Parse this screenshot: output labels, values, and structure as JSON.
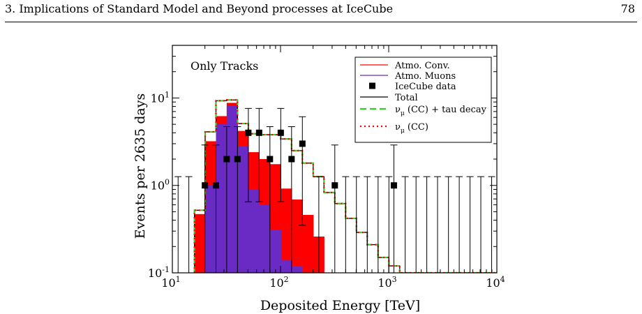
{
  "header": {
    "running_title": "3. Implications of Standard Model and Beyond processes at IceCube",
    "page_number": "78"
  },
  "chart_data": {
    "type": "histogram",
    "annotation": "Only Tracks",
    "xlabel": "Deposited Energy [TeV]",
    "ylabel": "Events per 2635 days",
    "xscale": "log",
    "yscale": "log",
    "xlim": [
      10,
      10000
    ],
    "ylim": [
      0.1,
      40
    ],
    "legend_position": "top-right",
    "x_ticks": [
      {
        "base": "10",
        "exp": "1"
      },
      {
        "base": "10",
        "exp": "2"
      },
      {
        "base": "10",
        "exp": "3"
      },
      {
        "base": "10",
        "exp": "4"
      }
    ],
    "y_ticks": [
      {
        "base": "10",
        "exp": "-1"
      },
      {
        "base": "10",
        "exp": "0"
      },
      {
        "base": "10",
        "exp": "1"
      }
    ],
    "bin_edges": [
      16.0,
      20.1,
      25.3,
      31.8,
      40.0,
      50.4,
      63.4,
      79.8,
      100.5,
      126.5,
      159.2,
      200.4,
      252.3,
      317.6,
      399.8,
      503.3,
      633.6,
      797.6,
      1004.1,
      1264.0,
      1591.3,
      2003.3,
      2522.0,
      3174.9,
      3996.9,
      5031.7,
      6334.4,
      7974.4,
      10000.0
    ],
    "series": [
      {
        "name": "Atmo. Conv.",
        "color": "#ff0000",
        "style": "filled",
        "values": [
          0.47,
          3.2,
          6.2,
          8.8,
          4.2,
          2.4,
          2.0,
          1.75,
          0.92,
          0.69,
          0.46,
          0.26,
          0.1,
          0.1,
          0.1,
          0.1,
          0.1,
          0.1,
          0.1,
          0.1,
          0.1,
          0.1,
          0.1,
          0.1,
          0.1,
          0.1,
          0.1,
          0.1
        ]
      },
      {
        "name": "Atmo. Muons",
        "color": "#6a2bc4",
        "style": "filled",
        "values": [
          0.1,
          1.0,
          5.0,
          8.2,
          2.8,
          0.9,
          0.6,
          0.31,
          0.14,
          0.12,
          0.1,
          0.1,
          0.1,
          0.1,
          0.1,
          0.1,
          0.1,
          0.1,
          0.1,
          0.1,
          0.1,
          0.1,
          0.1,
          0.1,
          0.1,
          0.1,
          0.1,
          0.1
        ]
      },
      {
        "name": "Total",
        "color": "#000000",
        "style": "step",
        "values": [
          0.52,
          4.1,
          9.3,
          9.5,
          5.1,
          3.9,
          3.8,
          3.8,
          3.4,
          2.5,
          1.8,
          1.26,
          0.83,
          0.62,
          0.42,
          0.29,
          0.21,
          0.15,
          0.12,
          0.1,
          0.1,
          0.1,
          0.1,
          0.1,
          0.1,
          0.1,
          0.1,
          0.1
        ]
      },
      {
        "name": "ν_μ (CC) + tau decay",
        "label_main": "ν",
        "label_sub": "μ",
        "label_rest": " (CC) + tau decay",
        "color": "#33cc33",
        "style": "dashed",
        "values": [
          0.52,
          4.1,
          9.3,
          9.5,
          5.1,
          3.9,
          3.8,
          3.8,
          3.4,
          2.5,
          1.8,
          1.26,
          0.83,
          0.62,
          0.42,
          0.29,
          0.21,
          0.15,
          0.12,
          0.1,
          0.1,
          0.1,
          0.1,
          0.1,
          0.1,
          0.1,
          0.1,
          0.1
        ]
      },
      {
        "name": "ν_μ (CC)",
        "label_main": "ν",
        "label_sub": "μ",
        "label_rest": " (CC)",
        "color": "#ff0000",
        "style": "dotted",
        "values": [
          0.52,
          4.1,
          9.3,
          9.5,
          5.1,
          3.9,
          3.8,
          3.8,
          3.4,
          2.5,
          1.8,
          1.26,
          0.83,
          0.62,
          0.42,
          0.29,
          0.21,
          0.15,
          0.12,
          0.1,
          0.1,
          0.1,
          0.1,
          0.1,
          0.1,
          0.1,
          0.1,
          0.1
        ]
      }
    ],
    "data_points": {
      "name": "IceCube data",
      "color": "#000000",
      "points": [
        {
          "x": 20.0,
          "y": 1.0,
          "ylow": 0.1,
          "yhigh": 2.9
        },
        {
          "x": 25.3,
          "y": 1.0,
          "ylow": 0.1,
          "yhigh": 2.9
        },
        {
          "x": 31.8,
          "y": 2.0,
          "ylow": 0.1,
          "yhigh": 4.7
        },
        {
          "x": 40.0,
          "y": 2.0,
          "ylow": 0.1,
          "yhigh": 4.7
        },
        {
          "x": 50.4,
          "y": 4.0,
          "ylow": 0.65,
          "yhigh": 7.6
        },
        {
          "x": 63.4,
          "y": 4.0,
          "ylow": 0.65,
          "yhigh": 7.6
        },
        {
          "x": 79.8,
          "y": 2.0,
          "ylow": 0.1,
          "yhigh": 4.7
        },
        {
          "x": 100.5,
          "y": 4.0,
          "ylow": 0.65,
          "yhigh": 7.6
        },
        {
          "x": 126.5,
          "y": 2.0,
          "ylow": 0.1,
          "yhigh": 4.7
        },
        {
          "x": 159.2,
          "y": 3.0,
          "ylow": 0.35,
          "yhigh": 6.1
        },
        {
          "x": 317.6,
          "y": 1.0,
          "ylow": 0.1,
          "yhigh": 2.9
        },
        {
          "x": 1117.0,
          "y": 1.0,
          "ylow": 0.1,
          "yhigh": 2.9
        }
      ],
      "upper_limits_x": [
        11.3,
        14.2,
        226.0,
        400.0,
        503.0,
        634.0,
        798.0,
        1005.0,
        1420.0,
        1790.0,
        2250.0,
        2830.0,
        3570.0,
        4490.0,
        5650.0,
        7110.0,
        8950.0
      ],
      "upper_limit_y": 1.26
    }
  }
}
